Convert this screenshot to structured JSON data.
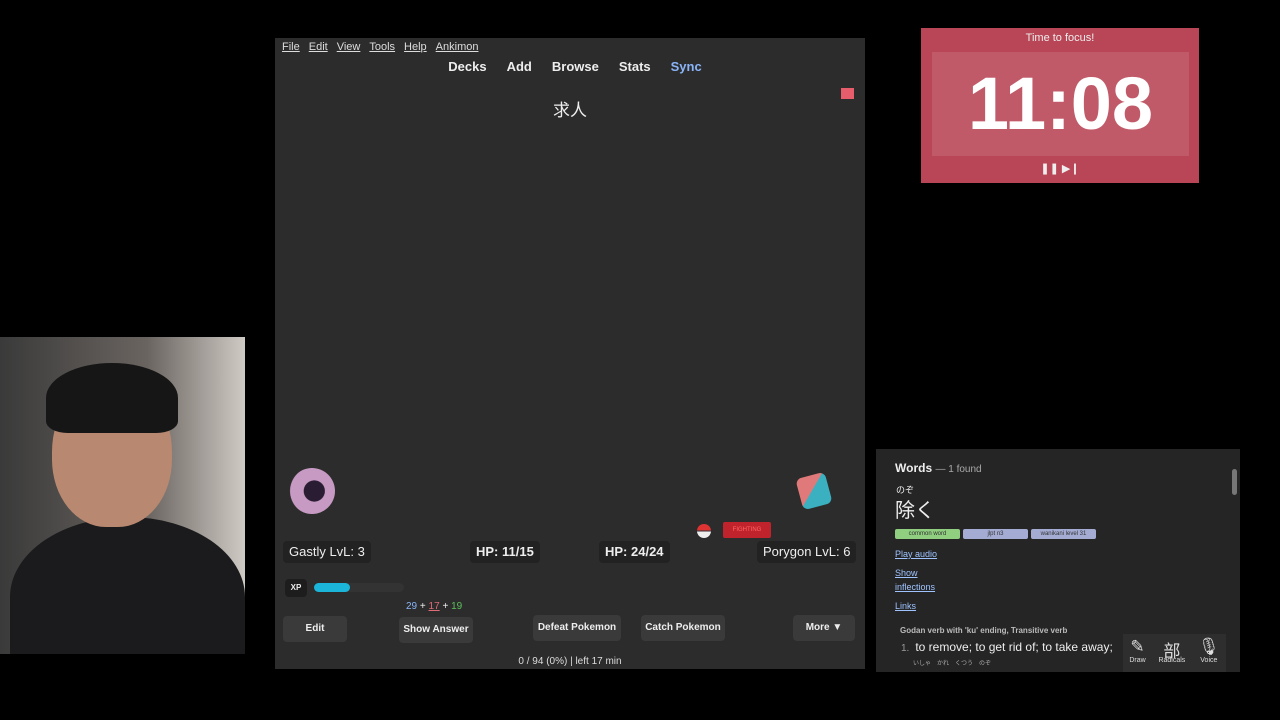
{
  "anki": {
    "menu": [
      "File",
      "Edit",
      "View",
      "Tools",
      "Help",
      "Ankimon"
    ],
    "nav": [
      "Decks",
      "Add",
      "Browse",
      "Stats",
      "Sync"
    ],
    "question": "求人",
    "player": {
      "name_level": "Gastly LvL: 3",
      "hp": "HP: 11/15"
    },
    "enemy": {
      "name_level": "Porygon LvL: 6",
      "hp": "HP: 24/24",
      "type": "FIGHTING"
    },
    "xp": {
      "label": "XP",
      "fill_percent": 40
    },
    "counts": {
      "new": "29",
      "learn": "17",
      "review": "19",
      "plus": "+"
    },
    "buttons": {
      "edit": "Edit",
      "show_answer": "Show Answer",
      "defeat": "Defeat Pokemon",
      "catch": "Catch Pokemon",
      "more": "More ▼"
    },
    "status": "0 / 94 (0%) | left 17 min",
    "colors": {
      "background": "#2c2c2c",
      "sync": "#8ab4f8",
      "xp": "#1ab5d8",
      "new": "#8ab4f8",
      "learn": "#e06c75",
      "review": "#5cc05c"
    }
  },
  "timer": {
    "title": "Time to focus!",
    "time": "11:08",
    "controls": "❚❚ ▶❙",
    "color": "#b94656"
  },
  "dictionary": {
    "heading": "Words",
    "found": "— 1 found",
    "furigana": "のぞ",
    "word": "除く",
    "tags": [
      {
        "label": "common word",
        "color": "#8fcf7f"
      },
      {
        "label": "jlpt n3",
        "color": "#a4acd4"
      },
      {
        "label": "wanikani level 31",
        "color": "#a4acd4"
      }
    ],
    "play_audio": "Play audio",
    "show": "Show",
    "inflections": "inflections",
    "links": "Links",
    "pos": "Godan verb with 'ku' ending, Transitive verb",
    "def_num": "1.",
    "definition": "to remove; to get rid of; to take away;",
    "example_furigana": "いしゃ　かれ　くつう　のぞ",
    "example": "……",
    "tools": [
      {
        "glyph": "✎",
        "label": "Draw"
      },
      {
        "glyph": "部",
        "label": "Radicals"
      },
      {
        "glyph": "🎙",
        "label": "Voice"
      }
    ]
  }
}
